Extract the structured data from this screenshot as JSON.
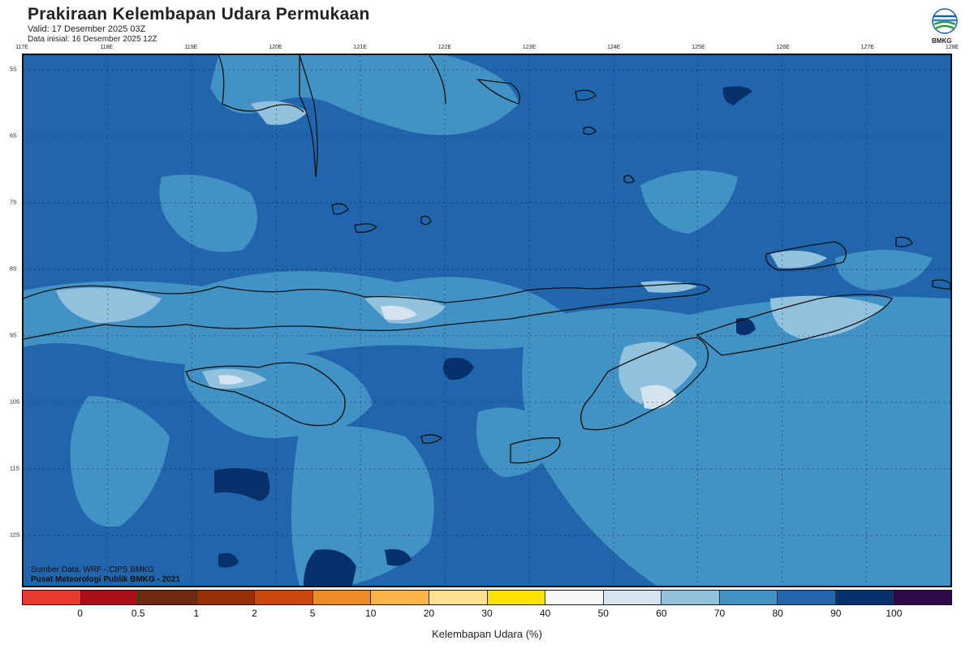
{
  "header": {
    "title": "Prakiraan Kelembapan Udara Permukaan",
    "valid": "Valid: 17 Desember 2025 03Z",
    "init": "Data inisial: 16 Desember 2025 12Z"
  },
  "logo": {
    "text": "BMKG"
  },
  "lon_labels": [
    "117E",
    "118E",
    "119E",
    "120E",
    "121E",
    "122E",
    "123E",
    "124E",
    "125E",
    "126E",
    "127E",
    "128E"
  ],
  "lat_labels": [
    "5S",
    "6S",
    "7S",
    "8S",
    "9S",
    "10S",
    "11S",
    "12S"
  ],
  "footer": {
    "source": "Sumber Data: WRF - CIPS BMKG",
    "org": "Pusat Meteorologi Publik BMKG - 2021"
  },
  "legend": {
    "title": "Kelembapan Udara (%)",
    "ticks": [
      "0",
      "0.5",
      "1",
      "2",
      "5",
      "10",
      "20",
      "30",
      "40",
      "50",
      "60",
      "70",
      "80",
      "90",
      "100"
    ],
    "colors": [
      "#e53a30",
      "#a50f15",
      "#6e2a10",
      "#963009",
      "#c9480a",
      "#f08a24",
      "#fbb44a",
      "#fde090",
      "#fce200",
      "#f7f7f7",
      "#d3e3ef",
      "#92c1de",
      "#4292c6",
      "#2166ac",
      "#08306b",
      "#2d0a4a"
    ]
  },
  "map_colors": {
    "sea_base": "#2166ac",
    "mid": "#4292c6",
    "light": "#92c1de",
    "pale": "#d3e3ef",
    "dark": "#08306b",
    "coast": "#111111"
  }
}
